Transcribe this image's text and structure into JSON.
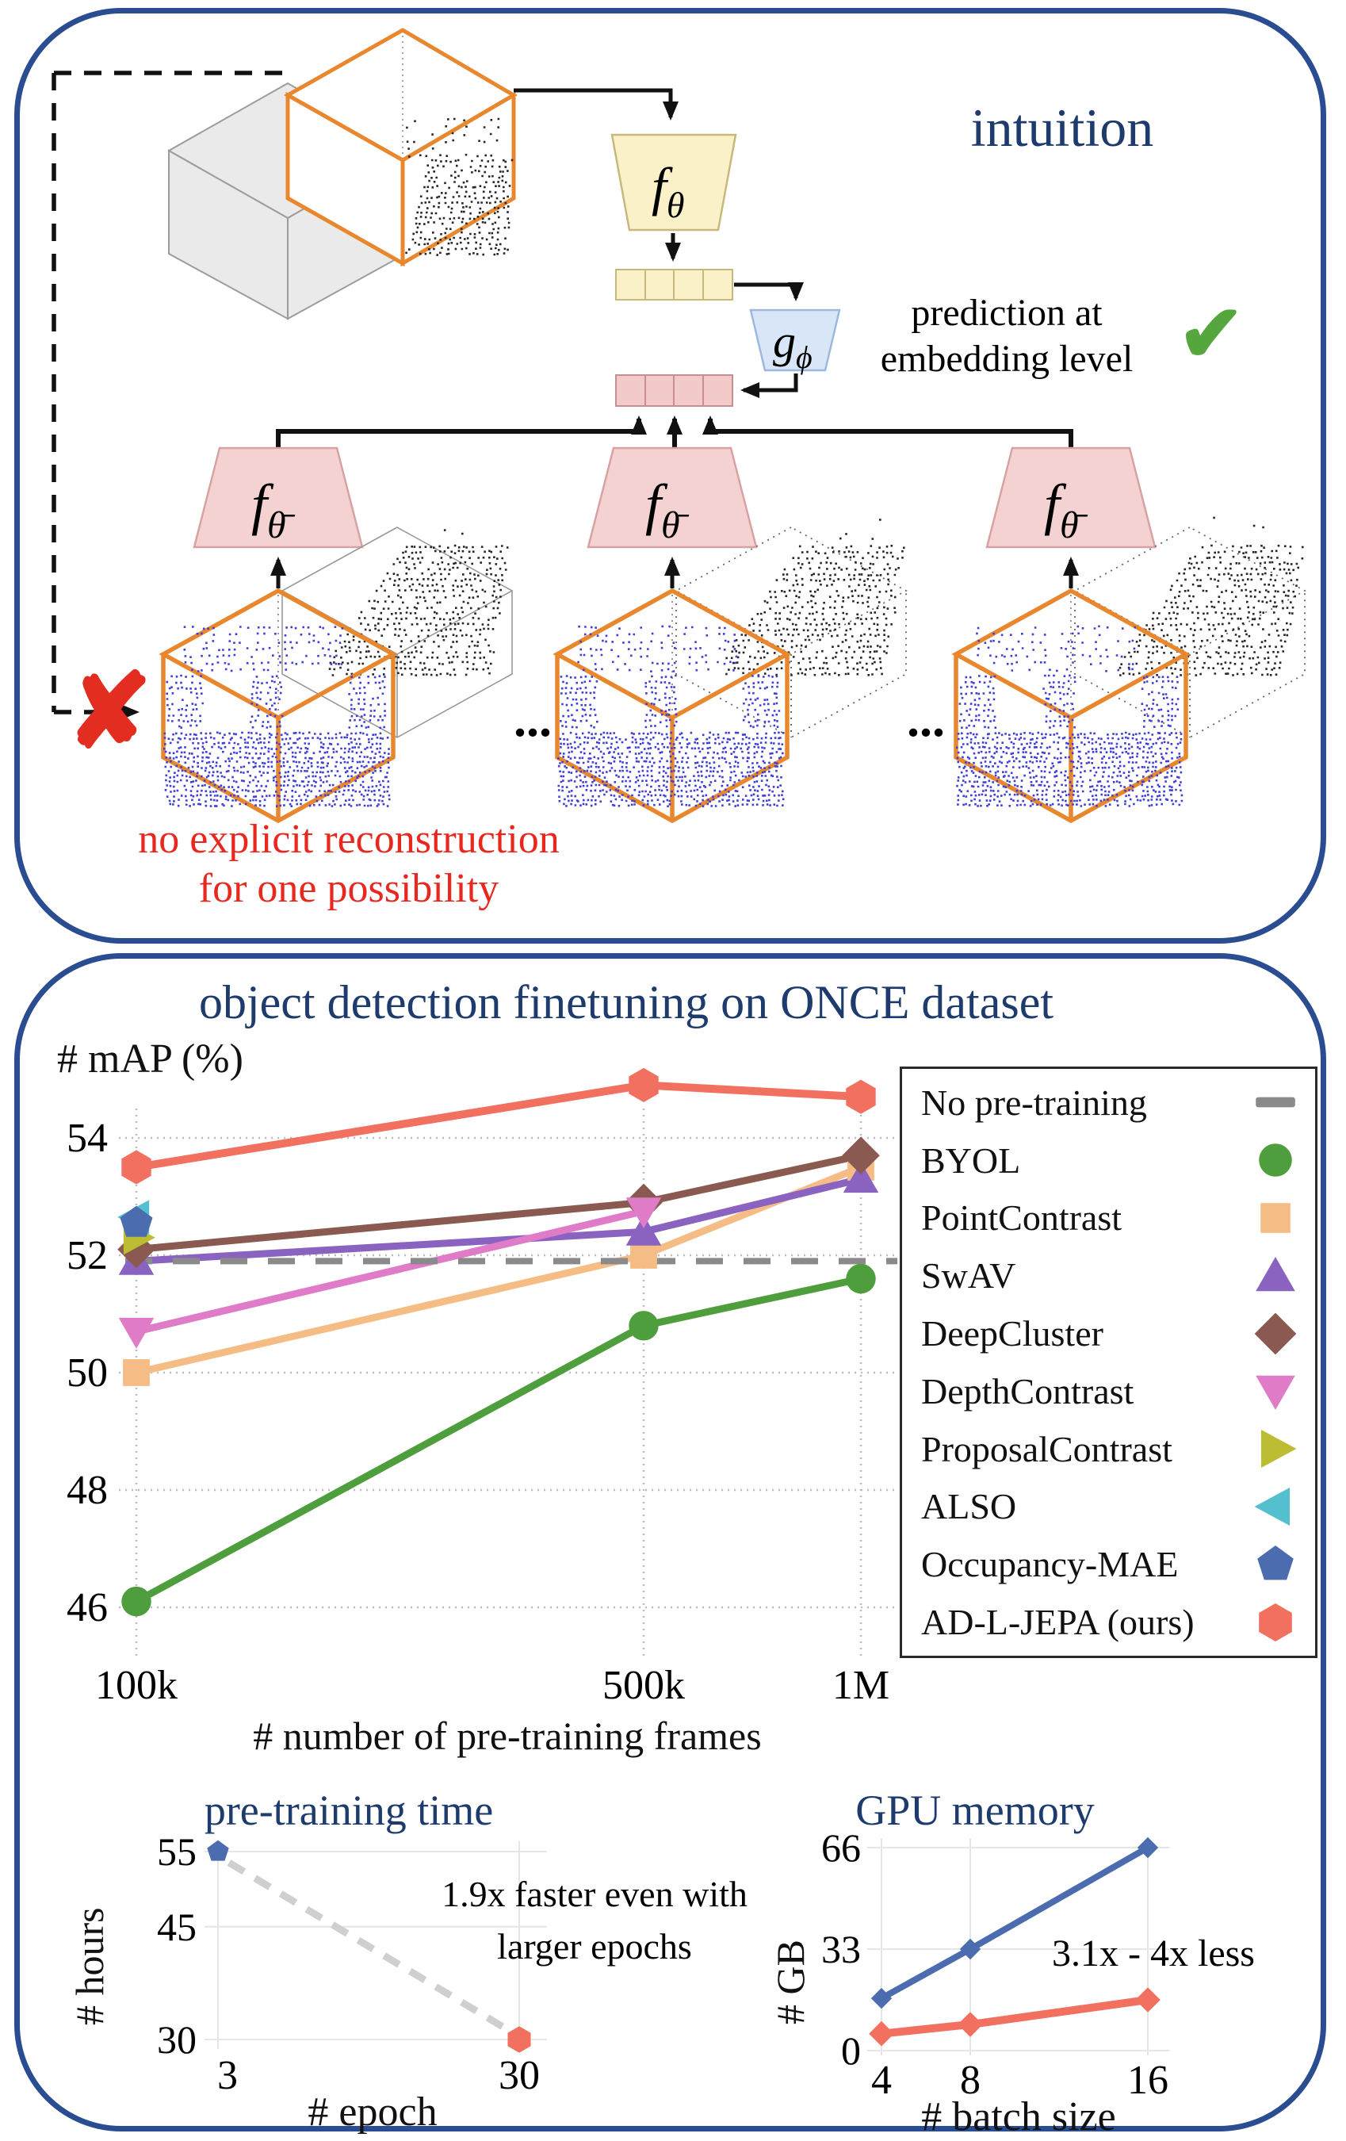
{
  "figure": {
    "intuition": {
      "title": "intuition",
      "prediction_note": [
        "prediction at",
        "embedding level"
      ],
      "check_icon": "✔",
      "cross_icon": "✘",
      "no_reconstruction": [
        "no explicit reconstruction",
        "for one possibility"
      ],
      "ellipsis": "...",
      "encoder": {
        "f": "f",
        "sub": "θ"
      },
      "predictor": {
        "g": "g",
        "sub": "ϕ"
      },
      "target_encoder": {
        "f": "f",
        "sub": "θ̄"
      },
      "colors": {
        "context_box": "#e8872e",
        "masked_cube": "#eaeaea",
        "blue_points": "#3f3fd6",
        "black_points": "#262626"
      }
    }
  },
  "chart_data": [
    {
      "type": "line",
      "title": "object detection finetuning on ONCE dataset",
      "ylabel": "# mAP (%)",
      "xlabel": "# number of pre-training frames",
      "categories": [
        "100k",
        "500k",
        "1M"
      ],
      "yticks": [
        54,
        52,
        50,
        48,
        46
      ],
      "ylim": [
        45.6,
        55.3
      ],
      "grid": true,
      "legend_position": "right",
      "series": [
        {
          "name": "No pre-training",
          "marker": "dash",
          "color": "#8a8a8a",
          "style": "dashed",
          "values": [
            51.9,
            51.9,
            51.9
          ]
        },
        {
          "name": "BYOL",
          "marker": "circle",
          "color": "#4f9e3e",
          "values": [
            46.1,
            50.8,
            51.6
          ]
        },
        {
          "name": "PointContrast",
          "marker": "square",
          "color": "#f5bd85",
          "values": [
            50.0,
            52.0,
            53.5
          ]
        },
        {
          "name": "SwAV",
          "marker": "triangle-up",
          "color": "#8a63c1",
          "values": [
            51.9,
            52.4,
            53.3
          ]
        },
        {
          "name": "DeepCluster",
          "marker": "diamond",
          "color": "#8a5a50",
          "values": [
            52.1,
            52.9,
            53.7
          ]
        },
        {
          "name": "DepthContrast",
          "marker": "triangle-down",
          "color": "#e07bc8",
          "values": [
            50.7,
            52.75,
            null
          ]
        },
        {
          "name": "ProposalContrast",
          "marker": "triangle-right",
          "color": "#bcbd33",
          "values": [
            52.3,
            null,
            null
          ]
        },
        {
          "name": "ALSO",
          "marker": "triangle-left",
          "color": "#54c0cf",
          "values": [
            52.65,
            null,
            null
          ]
        },
        {
          "name": "Occupancy-MAE",
          "marker": "pentagon",
          "color": "#4c6cb0",
          "values": [
            52.55,
            null,
            null
          ]
        },
        {
          "name": "AD-L-JEPA (ours)",
          "marker": "hexagon",
          "color": "#f2705f",
          "values": [
            53.5,
            54.9,
            54.7
          ]
        }
      ]
    },
    {
      "type": "scatter",
      "title": "pre-training time",
      "ylabel": "# hours",
      "xlabel": "# epoch",
      "xticks": [
        3,
        30
      ],
      "yticks": [
        55,
        45,
        30
      ],
      "points": [
        {
          "x": 3,
          "y": 55,
          "color": "#4c6cb0",
          "marker": "pentagon"
        },
        {
          "x": 30,
          "y": 30,
          "color": "#f2705f",
          "marker": "hexagon"
        }
      ],
      "connector": "dashed",
      "annotation": [
        "1.9x faster even with",
        "larger epochs"
      ]
    },
    {
      "type": "line",
      "title": "GPU memory",
      "ylabel": "# GB",
      "xlabel": "# batch size",
      "x": [
        4,
        8,
        16
      ],
      "yticks": [
        66,
        33,
        0
      ],
      "series": [
        {
          "name": "Occupancy-MAE",
          "color": "#4c6cb0",
          "marker": "diamond",
          "values": [
            17,
            33,
            66
          ]
        },
        {
          "name": "AD-L-JEPA (ours)",
          "color": "#f2705f",
          "marker": "diamond",
          "values": [
            5.5,
            8.5,
            16.5
          ]
        }
      ],
      "annotation": "3.1x - 4x less"
    }
  ]
}
